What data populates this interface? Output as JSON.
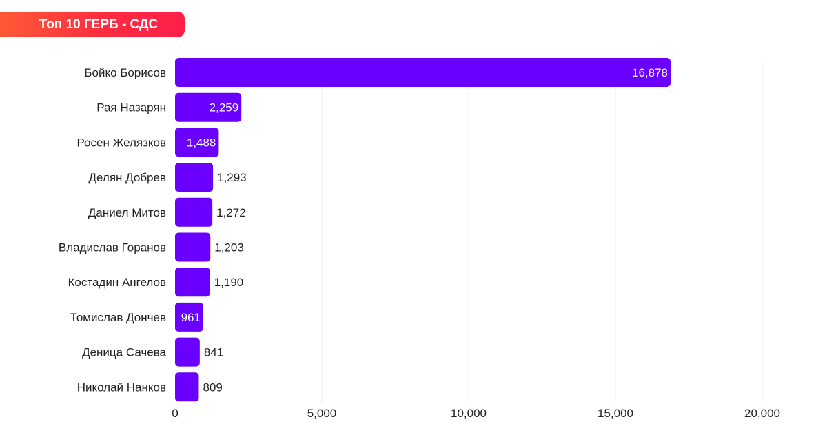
{
  "header": {
    "title": "Топ 10 ГЕРБ - СДС"
  },
  "colors": {
    "bar": "#6a00ff",
    "badge": "#ff3b3b",
    "grid": "#eeeeee",
    "text": "#222222"
  },
  "chart_data": {
    "type": "bar",
    "orientation": "horizontal",
    "title": "Топ 10 ГЕРБ - СДС",
    "categories": [
      "Бойко Борисов",
      "Рая Назарян",
      "Росен Желязков",
      "Делян Добрев",
      "Даниел Митов",
      "Владислав Горанов",
      "Костадин Ангелов",
      "Томислав Дончев",
      "Деница Сачева",
      "Николай Нанков"
    ],
    "values": [
      16878,
      2259,
      1488,
      1293,
      1272,
      1203,
      1190,
      961,
      841,
      809
    ],
    "value_labels": [
      "16,878",
      "2,259",
      "1,488",
      "1,293",
      "1,272",
      "1,203",
      "1,190",
      "961",
      "841",
      "809"
    ],
    "xlim": [
      0,
      20000
    ],
    "xticks": [
      0,
      5000,
      10000,
      15000,
      20000
    ],
    "xtick_labels": [
      "0",
      "5,000",
      "10,000",
      "15,000",
      "20,000"
    ],
    "grid": true,
    "legend": "none"
  }
}
